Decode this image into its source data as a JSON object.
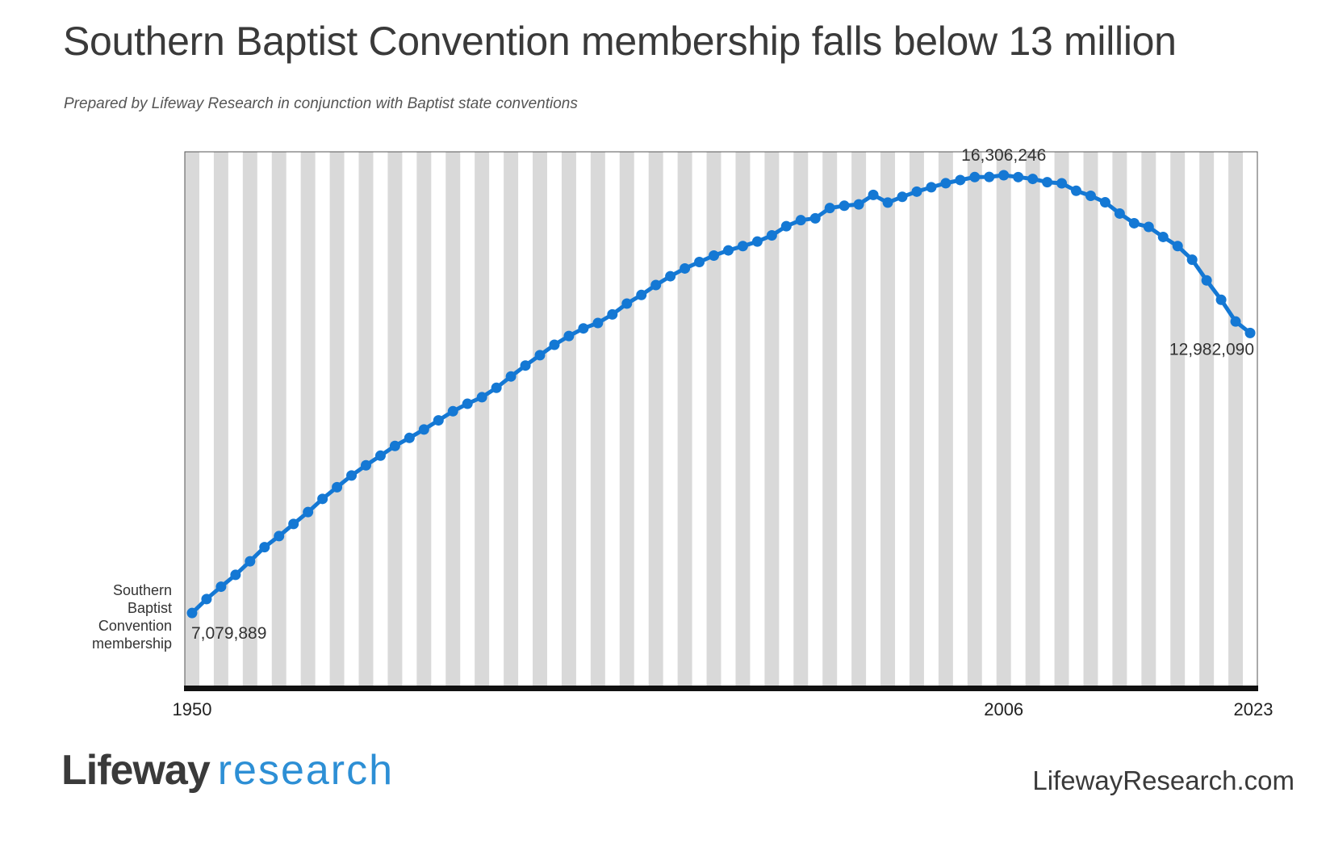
{
  "header": {
    "title": "Southern Baptist Convention membership falls below 13 million",
    "subtitle": "Prepared by Lifeway Research in conjunction with Baptist state conventions"
  },
  "footer": {
    "logo_word1": "Lifeway",
    "logo_word2": "research",
    "website": "LifewayResearch.com"
  },
  "colors": {
    "line": "#1478d4",
    "stripe": "#d9d9d9",
    "baseline": "#111111",
    "text": "#333333"
  },
  "chart_data": {
    "type": "line",
    "title": "Southern Baptist Convention membership falls below 13 million",
    "xlabel": "",
    "ylabel": "",
    "x_tick_labels": [
      "1950",
      "2006",
      "2023"
    ],
    "series": [
      {
        "name": "Southern Baptist Convention membership",
        "x": [
          1950,
          1951,
          1952,
          1953,
          1954,
          1955,
          1956,
          1957,
          1958,
          1959,
          1960,
          1961,
          1962,
          1963,
          1964,
          1965,
          1966,
          1967,
          1968,
          1969,
          1970,
          1971,
          1972,
          1973,
          1974,
          1975,
          1976,
          1977,
          1978,
          1979,
          1980,
          1981,
          1982,
          1983,
          1984,
          1985,
          1986,
          1987,
          1988,
          1989,
          1990,
          1991,
          1992,
          1993,
          1994,
          1995,
          1996,
          1997,
          1998,
          1999,
          2000,
          2001,
          2002,
          2003,
          2004,
          2005,
          2006,
          2007,
          2008,
          2009,
          2010,
          2011,
          2012,
          2013,
          2014,
          2015,
          2016,
          2017,
          2018,
          2019,
          2020,
          2021,
          2022,
          2023
        ],
        "values": [
          7079889,
          7373498,
          7634493,
          7883708,
          8169491,
          8467439,
          8700480,
          8956995,
          9206758,
          9485276,
          9731591,
          9978139,
          10193052,
          10395940,
          10601515,
          10770573,
          10947389,
          11140000,
          11332229,
          11489613,
          11628032,
          11826463,
          12065333,
          12295400,
          12513378,
          12733124,
          12917992,
          13078239,
          13191394,
          13372757,
          13600126,
          13782644,
          13991709,
          14178051,
          14341821,
          14477364,
          14613638,
          14722617,
          14812844,
          14907826,
          15038409,
          15232347,
          15358866,
          15398642,
          15614060,
          15663296,
          15691964,
          15891514,
          15729356,
          15851756,
          15960308,
          16052920,
          16137736,
          16205050,
          16267494,
          16270315,
          16306246,
          16266920,
          16228438,
          16160088,
          16136044,
          15978112,
          15872404,
          15735640,
          15499173,
          15294764,
          15216978,
          15005638,
          14813234,
          14525579,
          14089947,
          13680493,
          13223122,
          12982090
        ],
        "annotated": [
          {
            "x": 1950,
            "label": "7,079,889"
          },
          {
            "x": 2006,
            "label": "16,306,246"
          },
          {
            "x": 2023,
            "label": "12,982,090"
          }
        ]
      }
    ],
    "series_label": [
      "Southern",
      "Baptist",
      "Convention",
      "membership"
    ],
    "xlim": [
      1950,
      2023
    ],
    "ylim": [
      5500000,
      16800000
    ],
    "grid": "alternating vertical stripes per year",
    "legend": "none"
  }
}
